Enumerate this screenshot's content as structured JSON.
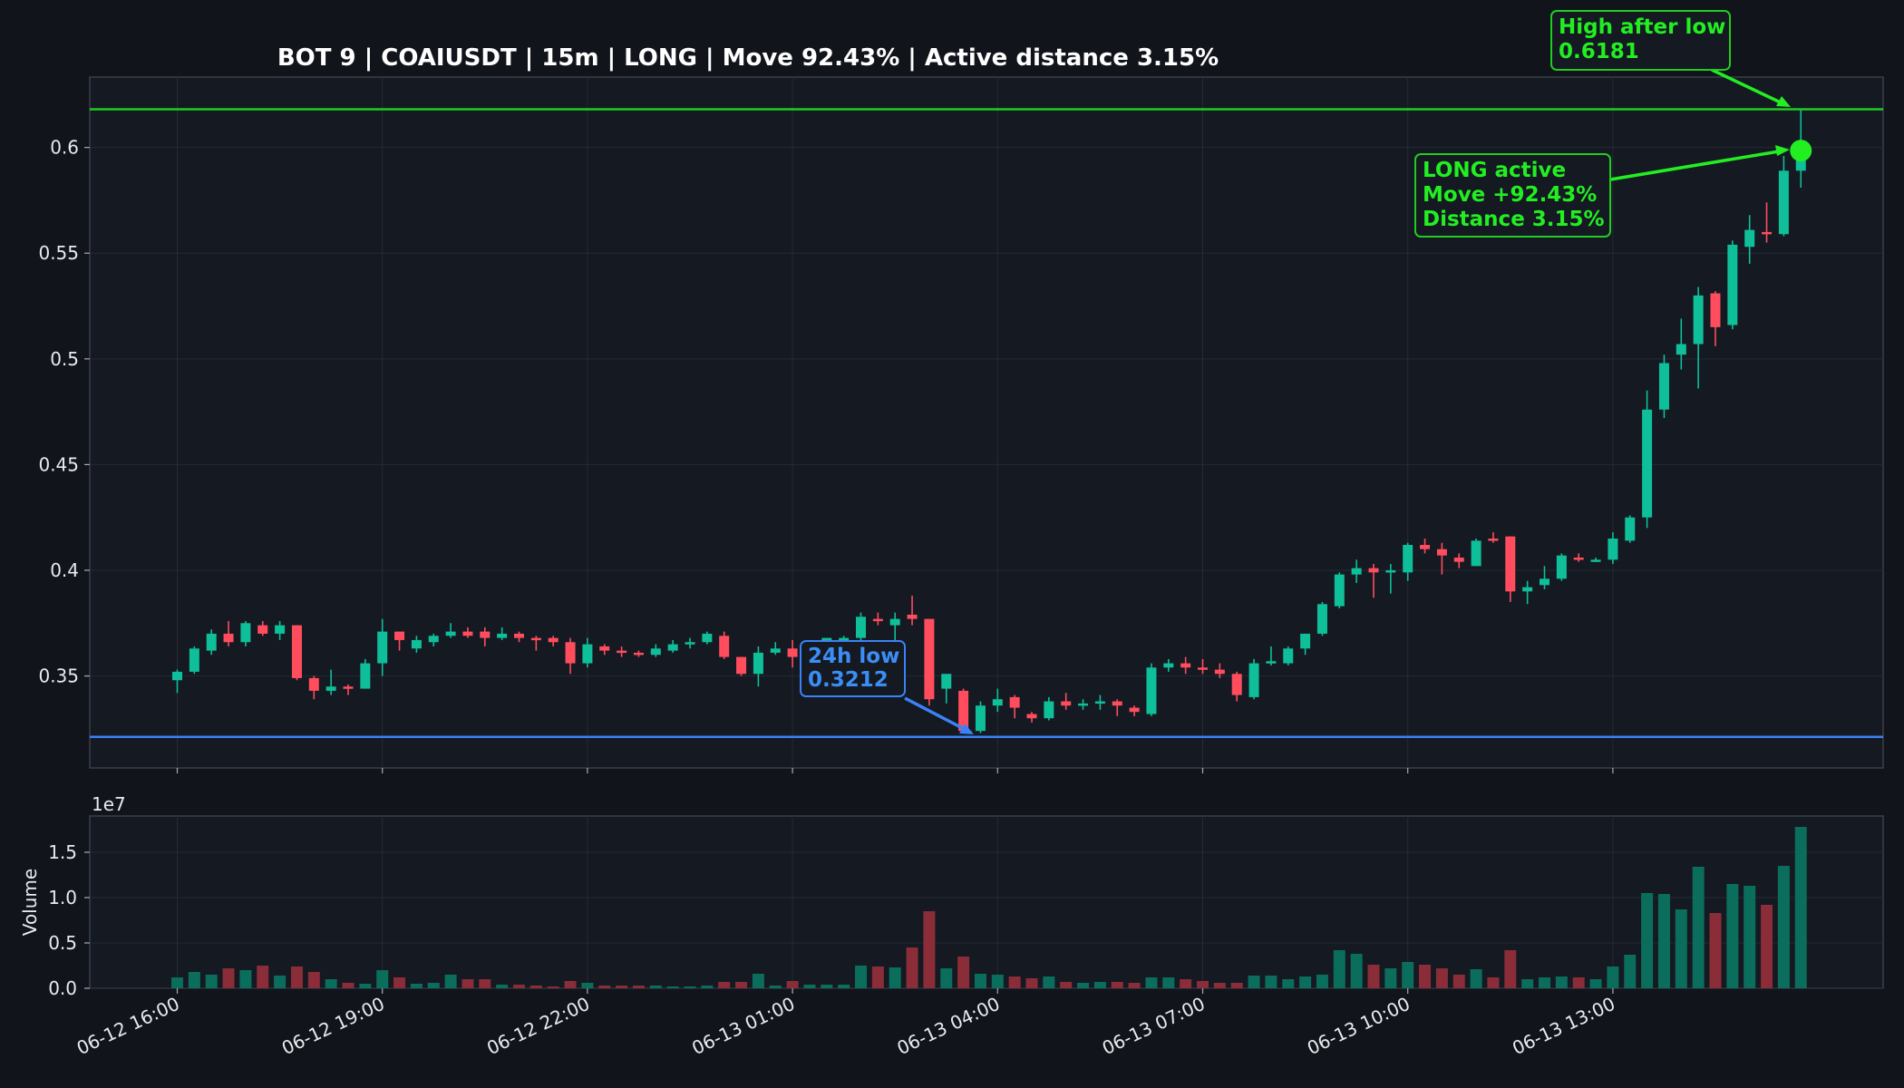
{
  "chart_data": {
    "type": "candlestick",
    "title": "BOT 9 | COAIUSDT | 15m | LONG | Move 92.43% | Active distance 3.15%",
    "price_axis": {
      "ylim": [
        0.3065,
        0.6333
      ],
      "ticks": [
        0.35,
        0.4,
        0.45,
        0.5,
        0.55,
        0.6
      ]
    },
    "volume_axis": {
      "ylabel": "Volume",
      "offset_label": "1e7",
      "ylim": [
        0,
        1.9
      ],
      "ticks": [
        0.0,
        0.5,
        1.0,
        1.5
      ]
    },
    "x_axis": {
      "tick_labels": [
        "06-12 16:00",
        "06-12 19:00",
        "06-12 22:00",
        "06-13 01:00",
        "06-13 04:00",
        "06-13 07:00",
        "06-13 10:00",
        "06-13 13:00"
      ],
      "start_time": "06-12 16:00",
      "interval_minutes": 15,
      "bars_per_tick": 12
    },
    "grid": true,
    "colors": {
      "up": "#0fbf99",
      "down": "#ff4d5e",
      "high_line": "#22cc22",
      "low_line": "#3b82f6",
      "background": "#11141b",
      "panel": "#141922"
    },
    "candles": [
      [
        0.348,
        0.353,
        0.342,
        0.352
      ],
      [
        0.352,
        0.364,
        0.351,
        0.363
      ],
      [
        0.362,
        0.372,
        0.36,
        0.37
      ],
      [
        0.37,
        0.376,
        0.364,
        0.366
      ],
      [
        0.366,
        0.376,
        0.364,
        0.375
      ],
      [
        0.374,
        0.376,
        0.369,
        0.37
      ],
      [
        0.37,
        0.376,
        0.367,
        0.374
      ],
      [
        0.374,
        0.374,
        0.348,
        0.349
      ],
      [
        0.349,
        0.35,
        0.339,
        0.343
      ],
      [
        0.343,
        0.353,
        0.341,
        0.345
      ],
      [
        0.345,
        0.346,
        0.341,
        0.344
      ],
      [
        0.344,
        0.358,
        0.344,
        0.356
      ],
      [
        0.356,
        0.377,
        0.35,
        0.371
      ],
      [
        0.371,
        0.371,
        0.362,
        0.367
      ],
      [
        0.363,
        0.369,
        0.361,
        0.367
      ],
      [
        0.366,
        0.37,
        0.364,
        0.369
      ],
      [
        0.369,
        0.375,
        0.368,
        0.371
      ],
      [
        0.371,
        0.373,
        0.368,
        0.369
      ],
      [
        0.371,
        0.373,
        0.364,
        0.368
      ],
      [
        0.368,
        0.373,
        0.367,
        0.37
      ],
      [
        0.37,
        0.371,
        0.366,
        0.368
      ],
      [
        0.368,
        0.369,
        0.362,
        0.367
      ],
      [
        0.368,
        0.369,
        0.364,
        0.366
      ],
      [
        0.366,
        0.368,
        0.351,
        0.356
      ],
      [
        0.356,
        0.368,
        0.354,
        0.365
      ],
      [
        0.364,
        0.365,
        0.36,
        0.362
      ],
      [
        0.362,
        0.364,
        0.359,
        0.361
      ],
      [
        0.361,
        0.362,
        0.359,
        0.36
      ],
      [
        0.36,
        0.365,
        0.359,
        0.363
      ],
      [
        0.362,
        0.367,
        0.361,
        0.365
      ],
      [
        0.365,
        0.368,
        0.363,
        0.366
      ],
      [
        0.366,
        0.371,
        0.365,
        0.37
      ],
      [
        0.369,
        0.371,
        0.358,
        0.359
      ],
      [
        0.359,
        0.359,
        0.35,
        0.351
      ],
      [
        0.351,
        0.364,
        0.345,
        0.361
      ],
      [
        0.361,
        0.366,
        0.36,
        0.363
      ],
      [
        0.363,
        0.367,
        0.354,
        0.359
      ],
      [
        0.359,
        0.365,
        0.358,
        0.364
      ],
      [
        0.365,
        0.368,
        0.362,
        0.368
      ],
      [
        0.367,
        0.369,
        0.365,
        0.368
      ],
      [
        0.368,
        0.38,
        0.366,
        0.378
      ],
      [
        0.377,
        0.38,
        0.374,
        0.376
      ],
      [
        0.374,
        0.38,
        0.366,
        0.377
      ],
      [
        0.379,
        0.388,
        0.374,
        0.377
      ],
      [
        0.377,
        0.377,
        0.336,
        0.339
      ],
      [
        0.344,
        0.35,
        0.337,
        0.351
      ],
      [
        0.343,
        0.344,
        0.323,
        0.324
      ],
      [
        0.324,
        0.338,
        0.323,
        0.336
      ],
      [
        0.336,
        0.344,
        0.333,
        0.339
      ],
      [
        0.34,
        0.341,
        0.33,
        0.335
      ],
      [
        0.332,
        0.333,
        0.328,
        0.33
      ],
      [
        0.33,
        0.34,
        0.329,
        0.338
      ],
      [
        0.338,
        0.342,
        0.334,
        0.336
      ],
      [
        0.336,
        0.339,
        0.334,
        0.337
      ],
      [
        0.337,
        0.341,
        0.334,
        0.338
      ],
      [
        0.338,
        0.339,
        0.331,
        0.336
      ],
      [
        0.335,
        0.336,
        0.331,
        0.333
      ],
      [
        0.332,
        0.356,
        0.331,
        0.354
      ],
      [
        0.354,
        0.358,
        0.352,
        0.356
      ],
      [
        0.356,
        0.359,
        0.351,
        0.354
      ],
      [
        0.354,
        0.358,
        0.351,
        0.353
      ],
      [
        0.353,
        0.356,
        0.349,
        0.351
      ],
      [
        0.351,
        0.352,
        0.338,
        0.341
      ],
      [
        0.34,
        0.358,
        0.339,
        0.356
      ],
      [
        0.356,
        0.364,
        0.355,
        0.357
      ],
      [
        0.356,
        0.364,
        0.355,
        0.363
      ],
      [
        0.363,
        0.37,
        0.36,
        0.37
      ],
      [
        0.37,
        0.385,
        0.369,
        0.384
      ],
      [
        0.383,
        0.399,
        0.382,
        0.398
      ],
      [
        0.398,
        0.405,
        0.394,
        0.401
      ],
      [
        0.401,
        0.403,
        0.387,
        0.399
      ],
      [
        0.4,
        0.403,
        0.389,
        0.4
      ],
      [
        0.399,
        0.413,
        0.395,
        0.412
      ],
      [
        0.412,
        0.415,
        0.408,
        0.41
      ],
      [
        0.41,
        0.413,
        0.398,
        0.407
      ],
      [
        0.406,
        0.408,
        0.401,
        0.404
      ],
      [
        0.402,
        0.415,
        0.402,
        0.414
      ],
      [
        0.415,
        0.418,
        0.413,
        0.414
      ],
      [
        0.416,
        0.416,
        0.385,
        0.39
      ],
      [
        0.39,
        0.395,
        0.384,
        0.392
      ],
      [
        0.393,
        0.402,
        0.391,
        0.396
      ],
      [
        0.396,
        0.408,
        0.395,
        0.407
      ],
      [
        0.406,
        0.408,
        0.404,
        0.405
      ],
      [
        0.405,
        0.406,
        0.404,
        0.405
      ],
      [
        0.405,
        0.418,
        0.403,
        0.415
      ],
      [
        0.414,
        0.426,
        0.413,
        0.425
      ],
      [
        0.425,
        0.485,
        0.42,
        0.476
      ],
      [
        0.476,
        0.502,
        0.472,
        0.498
      ],
      [
        0.502,
        0.519,
        0.495,
        0.507
      ],
      [
        0.507,
        0.534,
        0.486,
        0.53
      ],
      [
        0.531,
        0.532,
        0.506,
        0.515
      ],
      [
        0.516,
        0.556,
        0.514,
        0.554
      ],
      [
        0.553,
        0.568,
        0.545,
        0.561
      ],
      [
        0.56,
        0.574,
        0.555,
        0.559
      ],
      [
        0.559,
        0.596,
        0.558,
        0.589
      ],
      [
        0.589,
        0.6181,
        0.581,
        0.598
      ]
    ],
    "volume": [
      0.12,
      0.18,
      0.15,
      0.22,
      0.2,
      0.25,
      0.14,
      0.24,
      0.18,
      0.1,
      0.06,
      0.05,
      0.2,
      0.12,
      0.05,
      0.06,
      0.15,
      0.1,
      0.1,
      0.04,
      0.04,
      0.03,
      0.02,
      0.08,
      0.06,
      0.03,
      0.03,
      0.03,
      0.03,
      0.02,
      0.02,
      0.03,
      0.07,
      0.07,
      0.16,
      0.03,
      0.08,
      0.04,
      0.04,
      0.04,
      0.25,
      0.24,
      0.23,
      0.45,
      0.85,
      0.22,
      0.35,
      0.16,
      0.15,
      0.13,
      0.11,
      0.13,
      0.07,
      0.06,
      0.07,
      0.07,
      0.06,
      0.12,
      0.12,
      0.1,
      0.08,
      0.06,
      0.06,
      0.14,
      0.14,
      0.1,
      0.13,
      0.15,
      0.42,
      0.38,
      0.26,
      0.22,
      0.29,
      0.26,
      0.22,
      0.15,
      0.21,
      0.12,
      0.42,
      0.1,
      0.12,
      0.13,
      0.12,
      0.1,
      0.24,
      0.37,
      1.05,
      1.04,
      0.87,
      1.34,
      0.83,
      1.15,
      1.13,
      0.92,
      1.35,
      1.78
    ],
    "reference_lines": [
      {
        "name": "high_after_low",
        "value": 0.6181
      },
      {
        "name": "24h_low",
        "value": 0.3212
      }
    ],
    "marker": {
      "bar_index": 95,
      "value": 0.5985
    }
  },
  "annotations": {
    "high": {
      "line1": "High after low",
      "line2": "0.6181"
    },
    "low": {
      "line1": "24h low",
      "line2": "0.3212"
    },
    "active": {
      "line1": "LONG active",
      "line2": "Move +92.43%",
      "line3": "Distance 3.15%"
    }
  }
}
